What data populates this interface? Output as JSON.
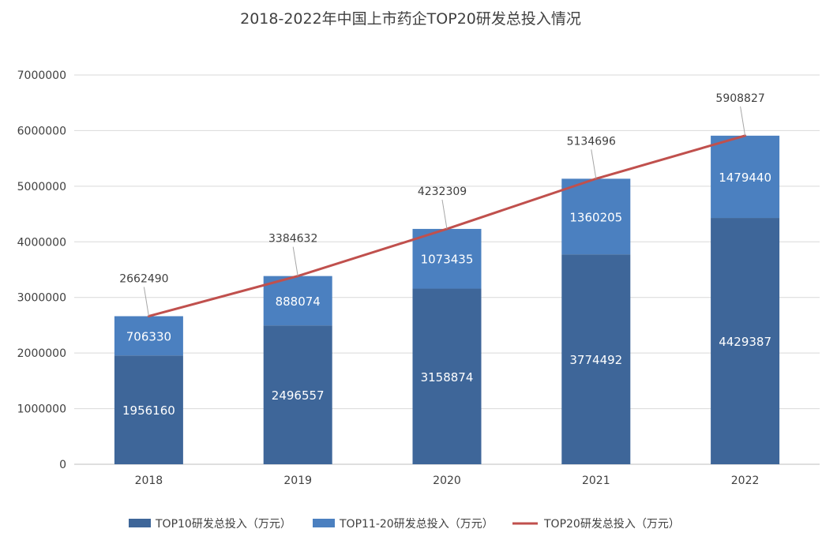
{
  "chart_data": {
    "type": "bar",
    "stacked": true,
    "title": "2018-2022年中国上市药企TOP20研发总投入情况",
    "categories": [
      "2018",
      "2019",
      "2020",
      "2021",
      "2022"
    ],
    "series": [
      {
        "name": "TOP10研发总投入（万元）",
        "kind": "bar",
        "color": "#3e6699",
        "values": [
          1956160,
          2496557,
          3158874,
          3774492,
          4429387
        ]
      },
      {
        "name": "TOP11-20研发总投入（万元）",
        "kind": "bar",
        "color": "#4b80c0",
        "values": [
          706330,
          888074,
          1073435,
          1360205,
          1479440
        ]
      },
      {
        "name": "TOP20研发总投入（万元）",
        "kind": "line",
        "color": "#c0504d",
        "values": [
          2662490,
          3384632,
          4232309,
          5134696,
          5908827
        ]
      }
    ],
    "yticks": [
      "0",
      "1000000",
      "2000000",
      "3000000",
      "4000000",
      "5000000",
      "6000000",
      "7000000"
    ],
    "ylim": [
      0,
      7000000
    ],
    "xlabel": "",
    "ylabel": "",
    "grid": true,
    "legend": "bottom"
  }
}
